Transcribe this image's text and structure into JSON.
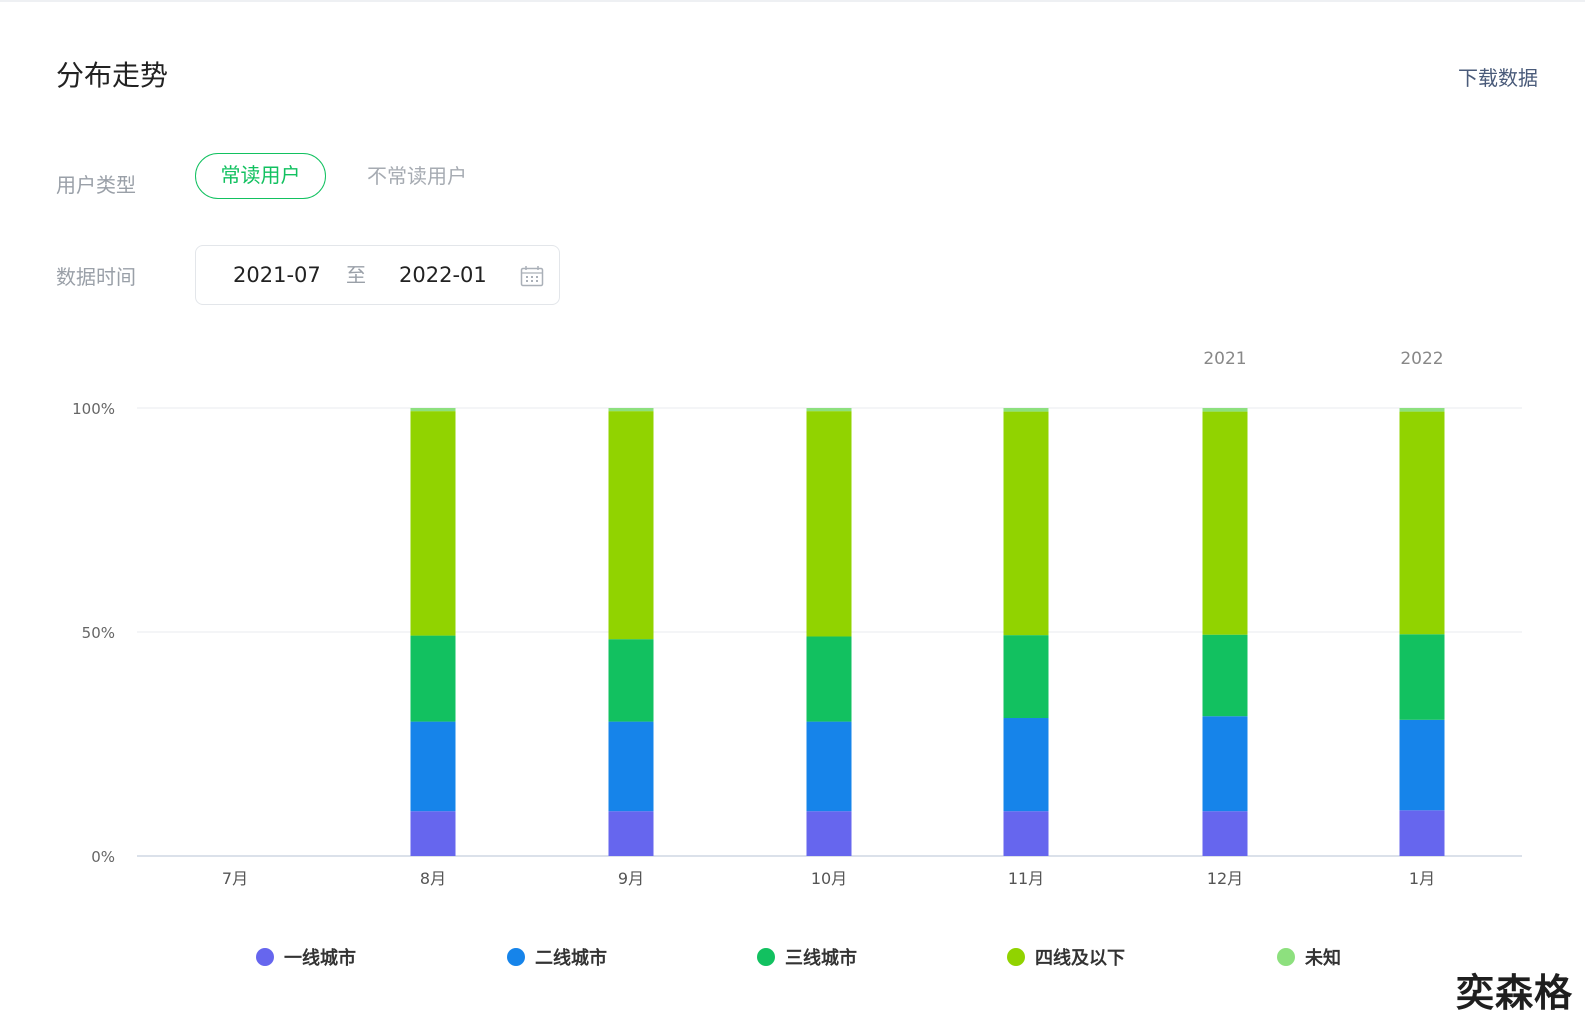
{
  "header": {
    "title": "分布走势",
    "download_label": "下载数据"
  },
  "filters": {
    "user_type_label": "用户类型",
    "user_type_options": [
      {
        "label": "常读用户",
        "active": true
      },
      {
        "label": "不常读用户",
        "active": false
      }
    ],
    "date_label": "数据时间",
    "date_start": "2021-07",
    "date_separator": "至",
    "date_end": "2022-01",
    "calendar_icon": "calendar-icon"
  },
  "chart_data": {
    "type": "bar",
    "stacked": true,
    "categories": [
      "7月",
      "8月",
      "9月",
      "10月",
      "11月",
      "12月",
      "1月"
    ],
    "year_labels": [
      {
        "category": "12月",
        "label": "2021"
      },
      {
        "category": "1月",
        "label": "2022"
      }
    ],
    "y_ticks": [
      "0%",
      "50%",
      "100%"
    ],
    "ylim": [
      0,
      100
    ],
    "series": [
      {
        "name": "一线城市",
        "color": "#6666ee",
        "values": [
          0,
          10,
          10,
          10,
          10,
          10,
          10.2
        ]
      },
      {
        "name": "二线城市",
        "color": "#1684ea",
        "values": [
          0,
          20,
          20,
          20,
          20.8,
          21.2,
          20.2
        ]
      },
      {
        "name": "三线城市",
        "color": "#12c160",
        "values": [
          0,
          19.2,
          18.4,
          19,
          18.5,
          18.2,
          19.1
        ]
      },
      {
        "name": "四线及以下",
        "color": "#91d300",
        "values": [
          0,
          50.1,
          50.9,
          50.3,
          49.9,
          49.8,
          49.7
        ]
      },
      {
        "name": "未知",
        "color": "#8de07e",
        "values": [
          0,
          0.7,
          0.7,
          0.7,
          0.8,
          0.8,
          0.8
        ]
      }
    ],
    "grid": true,
    "legend_position": "bottom"
  },
  "watermark": "奕森格"
}
